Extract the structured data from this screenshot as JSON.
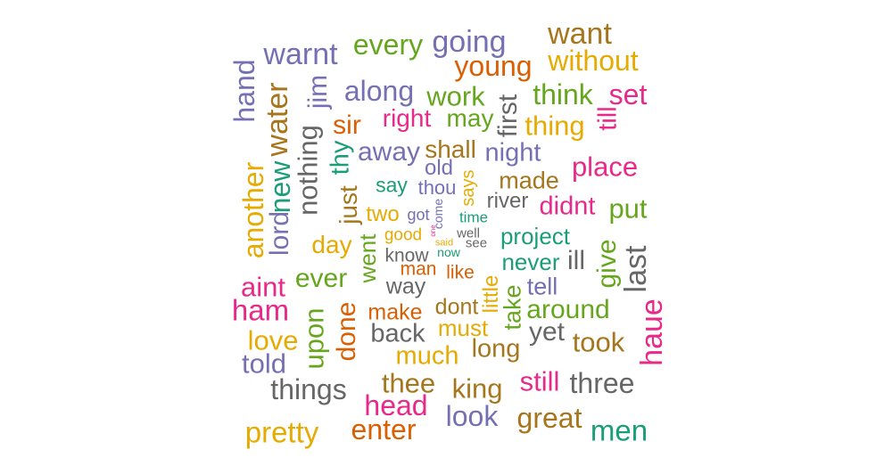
{
  "palette": {
    "teal": "#1b9e77",
    "orange": "#d95f02",
    "purple": "#7570b3",
    "magenta": "#e7298a",
    "green": "#66a61e",
    "gold": "#e6ab02",
    "brown": "#a6761d",
    "gray": "#666666"
  },
  "words": [
    {
      "text": "want",
      "color": "#a6761d"
    },
    {
      "text": "warnt",
      "color": "#7570b3"
    },
    {
      "text": "every",
      "color": "#66a61e"
    },
    {
      "text": "going",
      "color": "#7570b3"
    },
    {
      "text": "young",
      "color": "#d95f02"
    },
    {
      "text": "without",
      "color": "#e6ab02"
    },
    {
      "text": "along",
      "color": "#7570b3"
    },
    {
      "text": "work",
      "color": "#66a61e"
    },
    {
      "text": "think",
      "color": "#66a61e"
    },
    {
      "text": "set",
      "color": "#e7298a"
    },
    {
      "text": "right",
      "color": "#e7298a"
    },
    {
      "text": "may",
      "color": "#66a61e"
    },
    {
      "text": "thing",
      "color": "#e6ab02"
    },
    {
      "text": "sir",
      "color": "#d95f02"
    },
    {
      "text": "away",
      "color": "#7570b3"
    },
    {
      "text": "shall",
      "color": "#a6761d"
    },
    {
      "text": "night",
      "color": "#7570b3"
    },
    {
      "text": "old",
      "color": "#7570b3"
    },
    {
      "text": "place",
      "color": "#e7298a"
    },
    {
      "text": "made",
      "color": "#a6761d"
    },
    {
      "text": "say",
      "color": "#1b9e77"
    },
    {
      "text": "thou",
      "color": "#7570b3"
    },
    {
      "text": "river",
      "color": "#666666"
    },
    {
      "text": "didnt",
      "color": "#e7298a"
    },
    {
      "text": "put",
      "color": "#66a61e"
    },
    {
      "text": "two",
      "color": "#e6ab02"
    },
    {
      "text": "got",
      "color": "#7570b3"
    },
    {
      "text": "time",
      "color": "#1b9e77"
    },
    {
      "text": "day",
      "color": "#e6ab02"
    },
    {
      "text": "good",
      "color": "#e6ab02"
    },
    {
      "text": "well",
      "color": "#666666"
    },
    {
      "text": "project",
      "color": "#1b9e77"
    },
    {
      "text": "said",
      "color": "#e6ab02"
    },
    {
      "text": "see",
      "color": "#666666"
    },
    {
      "text": "know",
      "color": "#666666"
    },
    {
      "text": "now",
      "color": "#1b9e77"
    },
    {
      "text": "never",
      "color": "#1b9e77"
    },
    {
      "text": "ill",
      "color": "#666666"
    },
    {
      "text": "man",
      "color": "#d95f02"
    },
    {
      "text": "like",
      "color": "#d95f02"
    },
    {
      "text": "aint",
      "color": "#e7298a"
    },
    {
      "text": "ever",
      "color": "#66a61e"
    },
    {
      "text": "way",
      "color": "#666666"
    },
    {
      "text": "tell",
      "color": "#7570b3"
    },
    {
      "text": "ham",
      "color": "#e7298a"
    },
    {
      "text": "make",
      "color": "#d95f02"
    },
    {
      "text": "dont",
      "color": "#a6761d"
    },
    {
      "text": "around",
      "color": "#66a61e"
    },
    {
      "text": "back",
      "color": "#666666"
    },
    {
      "text": "must",
      "color": "#e6ab02"
    },
    {
      "text": "yet",
      "color": "#666666"
    },
    {
      "text": "love",
      "color": "#e6ab02"
    },
    {
      "text": "took",
      "color": "#a6761d"
    },
    {
      "text": "long",
      "color": "#a6761d"
    },
    {
      "text": "told",
      "color": "#7570b3"
    },
    {
      "text": "much",
      "color": "#e6ab02"
    },
    {
      "text": "still",
      "color": "#e7298a"
    },
    {
      "text": "three",
      "color": "#666666"
    },
    {
      "text": "things",
      "color": "#666666"
    },
    {
      "text": "thee",
      "color": "#a6761d"
    },
    {
      "text": "king",
      "color": "#a6761d"
    },
    {
      "text": "head",
      "color": "#e7298a"
    },
    {
      "text": "look",
      "color": "#7570b3"
    },
    {
      "text": "great",
      "color": "#a6761d"
    },
    {
      "text": "pretty",
      "color": "#e6ab02"
    },
    {
      "text": "enter",
      "color": "#d95f02"
    },
    {
      "text": "men",
      "color": "#1b9e77"
    },
    {
      "text": "hand",
      "color": "#7570b3"
    },
    {
      "text": "water",
      "color": "#a6761d"
    },
    {
      "text": "jim",
      "color": "#7570b3"
    },
    {
      "text": "first",
      "color": "#666666"
    },
    {
      "text": "till",
      "color": "#e7298a"
    },
    {
      "text": "nothing",
      "color": "#666666"
    },
    {
      "text": "thy",
      "color": "#1b9e77"
    },
    {
      "text": "another",
      "color": "#e6ab02"
    },
    {
      "text": "new",
      "color": "#1b9e77"
    },
    {
      "text": "lord",
      "color": "#7570b3"
    },
    {
      "text": "just",
      "color": "#a6761d"
    },
    {
      "text": "says",
      "color": "#e6ab02"
    },
    {
      "text": "come",
      "color": "#7570b3"
    },
    {
      "text": "one",
      "color": "#e7298a"
    },
    {
      "text": "went",
      "color": "#66a61e"
    },
    {
      "text": "give",
      "color": "#66a61e"
    },
    {
      "text": "last",
      "color": "#666666"
    },
    {
      "text": "little",
      "color": "#e6ab02"
    },
    {
      "text": "take",
      "color": "#66a61e"
    },
    {
      "text": "upon",
      "color": "#66a61e"
    },
    {
      "text": "done",
      "color": "#d95f02"
    },
    {
      "text": "haue",
      "color": "#e7298a"
    }
  ]
}
